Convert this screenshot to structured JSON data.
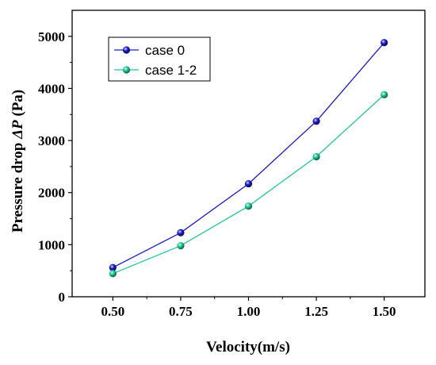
{
  "chart_data": {
    "type": "line",
    "xlabel": "Velocity(m/s)",
    "ylabel_prefix": "Pressure drop ",
    "ylabel_symbol": "ΔP",
    "ylabel_suffix": " (Pa)",
    "x": [
      0.5,
      0.75,
      1.0,
      1.25,
      1.5
    ],
    "x_tick_labels": [
      "0.50",
      "0.75",
      "1.00",
      "1.25",
      "1.50"
    ],
    "y_ticks": [
      0,
      1000,
      2000,
      3000,
      4000,
      5000
    ],
    "y_tick_labels": [
      "0",
      "1000",
      "2000",
      "3000",
      "4000",
      "5000"
    ],
    "xlim": [
      0.35,
      1.65
    ],
    "ylim": [
      0,
      5500
    ],
    "grid": false,
    "legend_position": "top-left",
    "series": [
      {
        "name": "case 0",
        "color": "#1a1acc",
        "marker": "sphere",
        "values": [
          560,
          1230,
          2170,
          3370,
          4880
        ]
      },
      {
        "name": "case 1-2",
        "color": "#1ec896",
        "marker": "sphere",
        "values": [
          445,
          980,
          1740,
          2690,
          3880
        ]
      }
    ]
  }
}
